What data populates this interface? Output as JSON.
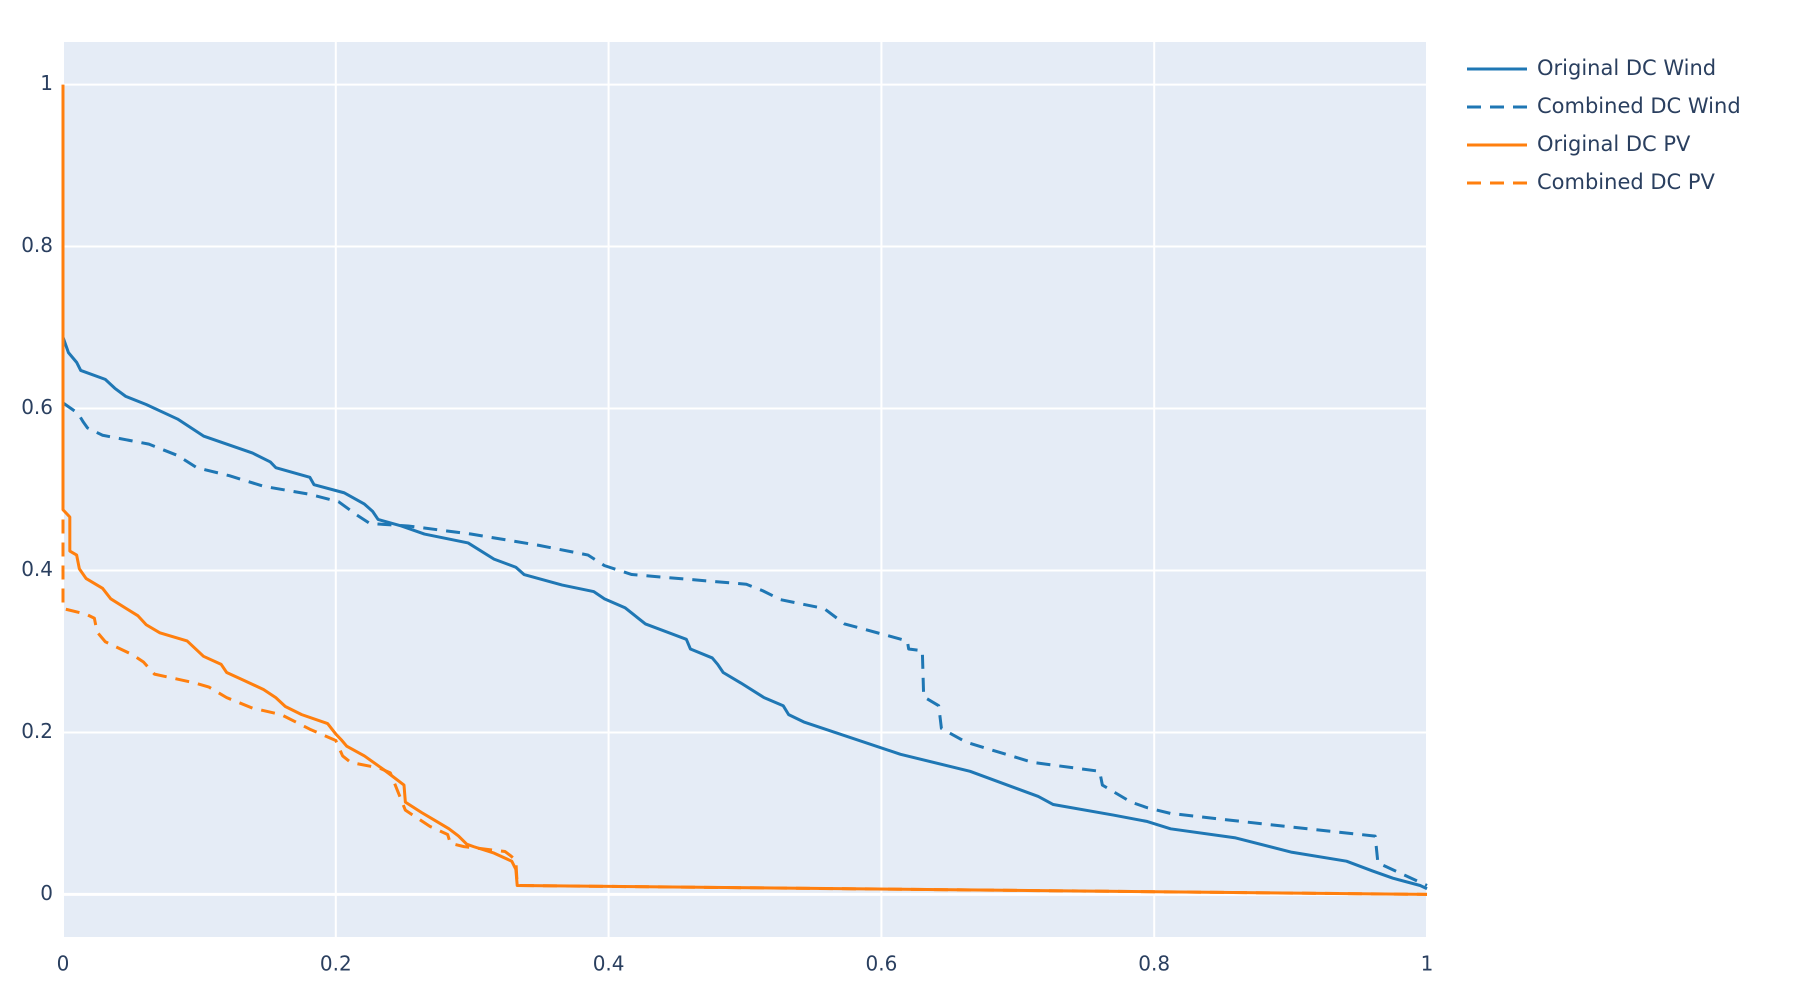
{
  "chart_data": {
    "type": "line",
    "xlim": [
      0,
      1
    ],
    "xticks": [
      0,
      0.2,
      0.4,
      0.6,
      0.8,
      1
    ],
    "ylim": [
      -0.0526,
      1.0526
    ],
    "yticks": [
      0,
      0.2,
      0.4,
      0.6,
      0.8,
      1
    ],
    "grid": true,
    "series": [
      {
        "name": "Original DC Wind",
        "color": "#1f77b4",
        "dash": "solid",
        "x": [
          0,
          0.004,
          0.01,
          0.013,
          0.031,
          0.038,
          0.046,
          0.061,
          0.084,
          0.103,
          0.139,
          0.152,
          0.156,
          0.181,
          0.184,
          0.206,
          0.221,
          0.227,
          0.231,
          0.248,
          0.265,
          0.297,
          0.316,
          0.332,
          0.338,
          0.366,
          0.389,
          0.397,
          0.412,
          0.427,
          0.457,
          0.46,
          0.476,
          0.48,
          0.484,
          0.497,
          0.514,
          0.528,
          0.532,
          0.543,
          0.614,
          0.665,
          0.715,
          0.726,
          0.77,
          0.795,
          0.812,
          0.859,
          0.901,
          0.941,
          0.96,
          0.975,
          0.995,
          1
        ],
        "values": [
          0.688,
          0.669,
          0.657,
          0.647,
          0.636,
          0.625,
          0.615,
          0.605,
          0.587,
          0.566,
          0.545,
          0.534,
          0.527,
          0.515,
          0.506,
          0.496,
          0.482,
          0.473,
          0.463,
          0.455,
          0.445,
          0.434,
          0.414,
          0.404,
          0.395,
          0.382,
          0.374,
          0.365,
          0.354,
          0.334,
          0.315,
          0.303,
          0.292,
          0.284,
          0.274,
          0.261,
          0.243,
          0.233,
          0.222,
          0.213,
          0.173,
          0.152,
          0.121,
          0.111,
          0.098,
          0.09,
          0.081,
          0.07,
          0.052,
          0.041,
          0.029,
          0.02,
          0.011,
          0.007
        ]
      },
      {
        "name": "Combined DC Wind",
        "color": "#1f77b4",
        "dash": "dash",
        "x": [
          0,
          0.011,
          0.015,
          0.018,
          0.029,
          0.063,
          0.084,
          0.098,
          0.122,
          0.147,
          0.181,
          0.202,
          0.215,
          0.225,
          0.253,
          0.299,
          0.349,
          0.385,
          0.397,
          0.417,
          0.501,
          0.513,
          0.526,
          0.558,
          0.573,
          0.619,
          0.62,
          0.63,
          0.631,
          0.642,
          0.644,
          0.662,
          0.711,
          0.76,
          0.762,
          0.783,
          0.795,
          0.812,
          0.88,
          0.962,
          0.964,
          1
        ],
        "values": [
          0.607,
          0.594,
          0.583,
          0.576,
          0.567,
          0.556,
          0.542,
          0.527,
          0.517,
          0.504,
          0.494,
          0.485,
          0.469,
          0.458,
          0.455,
          0.445,
          0.431,
          0.419,
          0.406,
          0.395,
          0.383,
          0.375,
          0.364,
          0.353,
          0.334,
          0.313,
          0.303,
          0.301,
          0.244,
          0.233,
          0.205,
          0.188,
          0.163,
          0.152,
          0.135,
          0.114,
          0.107,
          0.1,
          0.087,
          0.072,
          0.039,
          0.011
        ]
      },
      {
        "name": "Original DC PV",
        "color": "#ff7f0e",
        "dash": "solid",
        "x": [
          0,
          0,
          0.005,
          0.005,
          0.01,
          0.012,
          0.017,
          0.029,
          0.035,
          0.055,
          0.061,
          0.071,
          0.091,
          0.103,
          0.116,
          0.12,
          0.133,
          0.147,
          0.156,
          0.163,
          0.175,
          0.194,
          0.2,
          0.204,
          0.208,
          0.221,
          0.236,
          0.25,
          0.251,
          0.263,
          0.273,
          0.283,
          0.29,
          0.296,
          0.301,
          0.316,
          0.329,
          0.332,
          0.333,
          1
        ],
        "values": [
          1.0,
          0.475,
          0.466,
          0.424,
          0.419,
          0.402,
          0.39,
          0.378,
          0.365,
          0.344,
          0.333,
          0.323,
          0.313,
          0.294,
          0.284,
          0.274,
          0.264,
          0.253,
          0.243,
          0.232,
          0.222,
          0.211,
          0.198,
          0.191,
          0.183,
          0.171,
          0.153,
          0.135,
          0.114,
          0.101,
          0.091,
          0.081,
          0.072,
          0.062,
          0.059,
          0.051,
          0.041,
          0.031,
          0.011,
          0.0
        ]
      },
      {
        "name": "Combined DC PV",
        "color": "#ff7f0e",
        "dash": "dash",
        "x": [
          0,
          0,
          0.017,
          0.023,
          0.025,
          0.031,
          0.051,
          0.059,
          0.067,
          0.097,
          0.107,
          0.12,
          0.139,
          0.16,
          0.181,
          0.2,
          0.205,
          0.211,
          0.232,
          0.24,
          0.251,
          0.269,
          0.282,
          0.284,
          0.294,
          0.324,
          0.328,
          0.332,
          0.333,
          1
        ],
        "values": [
          0.463,
          0.353,
          0.346,
          0.341,
          0.324,
          0.312,
          0.296,
          0.287,
          0.272,
          0.261,
          0.256,
          0.243,
          0.23,
          0.222,
          0.204,
          0.19,
          0.171,
          0.163,
          0.156,
          0.15,
          0.104,
          0.084,
          0.074,
          0.063,
          0.059,
          0.053,
          0.048,
          0.042,
          0.011,
          0.0
        ]
      }
    ]
  }
}
